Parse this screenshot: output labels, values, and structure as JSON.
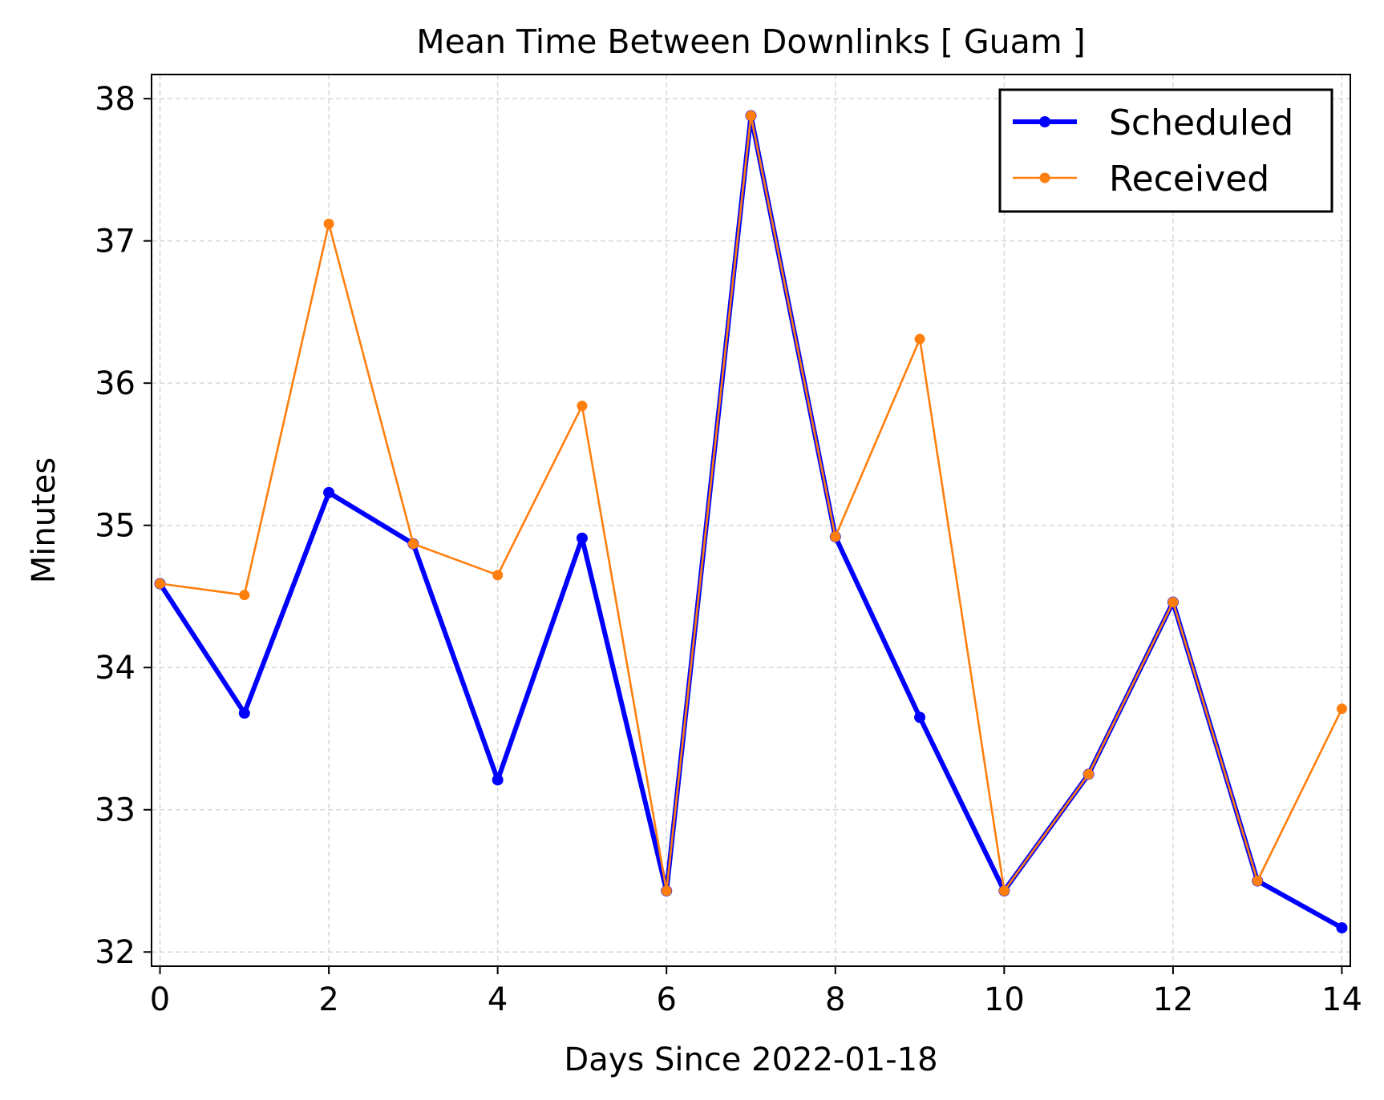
{
  "chart_data": {
    "type": "line",
    "title": "Mean Time Between Downlinks [ Guam ]",
    "xlabel": "Days Since 2022-01-18",
    "ylabel": "Minutes",
    "xlim": [
      -0.1,
      14.1
    ],
    "ylim": [
      31.9,
      38.17
    ],
    "xticks": [
      0,
      2,
      4,
      6,
      8,
      10,
      12,
      14
    ],
    "yticks": [
      32,
      33,
      34,
      35,
      36,
      37,
      38
    ],
    "grid": true,
    "legend_position": "top-right",
    "x": [
      0,
      1,
      2,
      3,
      4,
      5,
      6,
      7,
      8,
      9,
      10,
      11,
      12,
      13,
      14
    ],
    "series": [
      {
        "name": "Scheduled",
        "color": "#0000ff",
        "values": [
          34.59,
          33.68,
          35.23,
          34.87,
          33.21,
          34.91,
          32.43,
          37.88,
          34.92,
          33.65,
          32.43,
          33.25,
          34.46,
          32.5,
          32.17
        ]
      },
      {
        "name": "Received",
        "color": "#ff7f0e",
        "values": [
          34.59,
          34.51,
          37.12,
          34.87,
          34.65,
          35.84,
          32.43,
          37.88,
          34.92,
          36.31,
          32.43,
          33.25,
          34.46,
          32.5,
          33.71
        ]
      }
    ]
  }
}
